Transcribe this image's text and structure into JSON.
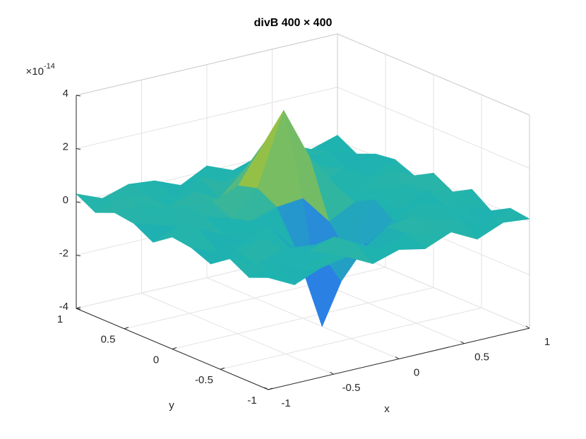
{
  "chart_data": {
    "type": "surface",
    "title": "divB 400 × 400",
    "xlabel": "x",
    "ylabel": "y",
    "z_exponent_base": "×10",
    "z_exponent_power": "-14",
    "x": [
      -1,
      -0.8,
      -0.6,
      -0.4,
      -0.2,
      0,
      0.2,
      0.4,
      0.6,
      0.8,
      1
    ],
    "y": [
      -1,
      -0.8,
      -0.6,
      -0.4,
      -0.2,
      0,
      0.2,
      0.4,
      0.6,
      0.8,
      1
    ],
    "z": [
      [
        0.2,
        -0.3,
        0.1,
        0.3,
        -0.2,
        0.1,
        -0.1,
        0.3,
        -0.2,
        0.2,
        0.1
      ],
      [
        -0.1,
        0.2,
        -0.3,
        0.1,
        0.3,
        -0.2,
        0.2,
        -0.1,
        0.3,
        -0.3,
        0.2
      ],
      [
        0.3,
        -0.2,
        0.2,
        -0.1,
        0.2,
        -0.6,
        0.1,
        0.3,
        -0.1,
        0.2,
        -0.2
      ],
      [
        -0.2,
        0.1,
        0.3,
        -0.3,
        -0.4,
        -2,
        -0.8,
        -0.2,
        0.2,
        -0.1,
        0.3
      ],
      [
        0.1,
        -0.3,
        -0.1,
        0.2,
        -0.9,
        -4,
        -1.5,
        0.3,
        -0.3,
        0.2,
        -0.1
      ],
      [
        0.2,
        0.3,
        -0.2,
        0.1,
        0.4,
        0.5,
        -0.6,
        -0.1,
        0.2,
        0.1,
        0.3
      ],
      [
        -0.3,
        0.1,
        0.2,
        -0.1,
        0.8,
        3.5,
        1.5,
        0.2,
        -0.2,
        0.3,
        -0.1
      ],
      [
        0.1,
        -0.2,
        0.3,
        0.2,
        0.6,
        2,
        0.9,
        -0.1,
        0.3,
        -0.2,
        0.2
      ],
      [
        0.2,
        0.3,
        -0.1,
        0.3,
        -0.2,
        0.7,
        0.2,
        0.3,
        0.1,
        -0.3,
        0.1
      ],
      [
        -0.1,
        0.2,
        0.1,
        -0.2,
        0.3,
        -0.1,
        0.2,
        -0.3,
        0.2,
        0.1,
        -0.2
      ],
      [
        0.3,
        -0.1,
        0.2,
        0.1,
        -0.3,
        0.2,
        -0.2,
        0.1,
        0.3,
        -0.1,
        0.2
      ]
    ],
    "xlim": [
      -1,
      1
    ],
    "ylim": [
      -1,
      1
    ],
    "zlim": [
      -4,
      4
    ],
    "xticks": [
      -1,
      -0.5,
      0,
      0.5,
      1
    ],
    "yticks": [
      -1,
      -0.5,
      0,
      0.5,
      1
    ],
    "zticks": [
      -4,
      -2,
      0,
      2,
      4
    ],
    "grid": true,
    "colormap": [
      "#3e26a8",
      "#2c7be9",
      "#1fb3b0",
      "#a8c236",
      "#f9fb14"
    ]
  }
}
